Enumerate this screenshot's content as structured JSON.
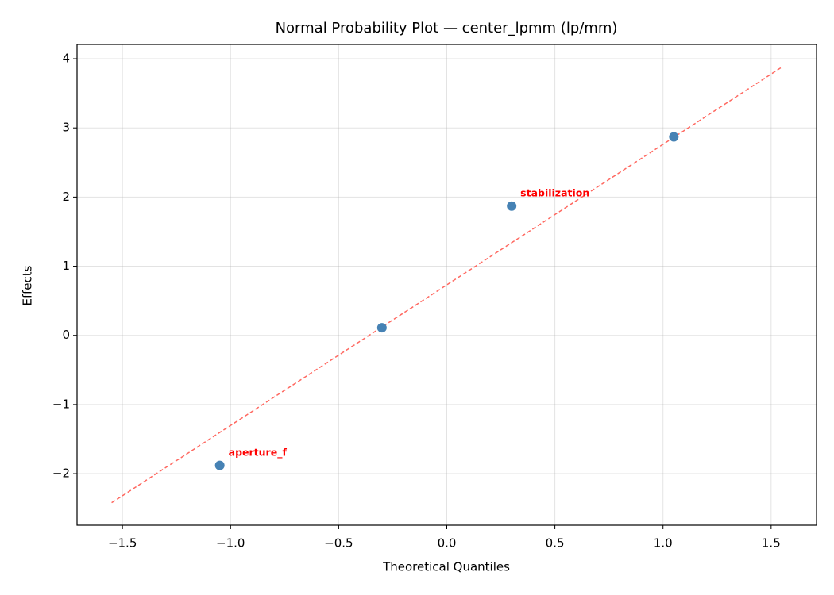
{
  "chart_data": {
    "type": "scatter",
    "title": "Normal Probability Plot — center_lpmm (lp/mm)",
    "x_label": "Theoretical Quantiles",
    "y_label": "Effects",
    "x": [
      -1.05,
      -0.3,
      0.3,
      1.05
    ],
    "values": [
      -1.88,
      0.11,
      1.87,
      2.87
    ],
    "labels": [
      "aperture_f",
      null,
      "stabilization",
      null
    ],
    "color": "#4682b4",
    "label_color": "#ff0000",
    "reference_line": {
      "x": [
        -1.55,
        1.55
      ],
      "y": [
        -2.42,
        3.88
      ],
      "color": "#ff6961",
      "dashed": true
    },
    "xlim": [
      -1.71,
      1.71
    ],
    "ylim": [
      -2.745,
      4.207
    ],
    "xticks": [
      {
        "value": -1.5,
        "label": "−1.5"
      },
      {
        "value": -1.0,
        "label": "−1.0"
      },
      {
        "value": -0.5,
        "label": "−0.5"
      },
      {
        "value": 0.0,
        "label": "0.0"
      },
      {
        "value": 0.5,
        "label": "0.5"
      },
      {
        "value": 1.0,
        "label": "1.0"
      },
      {
        "value": 1.5,
        "label": "1.5"
      }
    ],
    "yticks": [
      {
        "value": -2,
        "label": "−2"
      },
      {
        "value": -1,
        "label": "−1"
      },
      0,
      1,
      2,
      3,
      4
    ],
    "grid": true
  }
}
